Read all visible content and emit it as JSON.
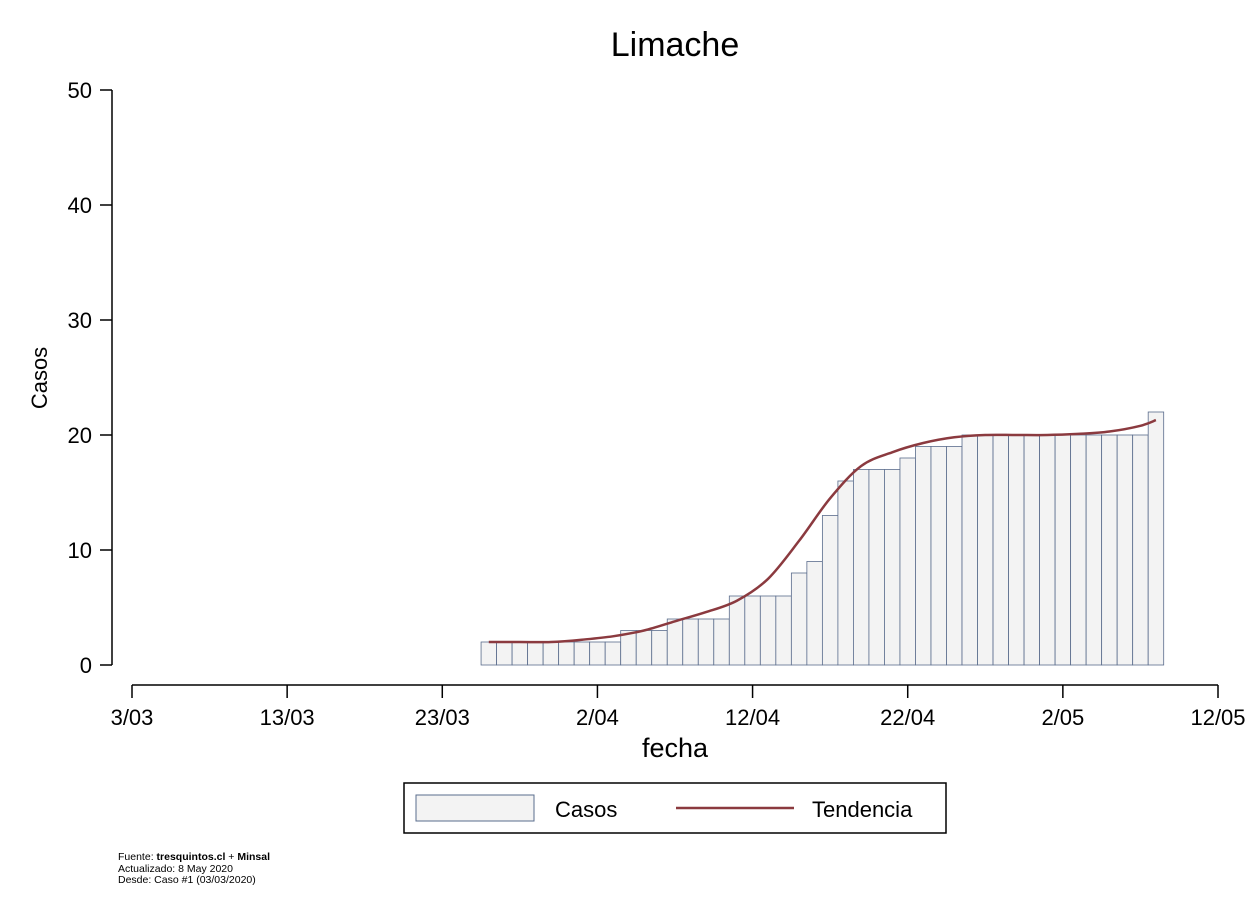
{
  "chart_data": {
    "type": "bar",
    "title": "Limache",
    "xlabel": "fecha",
    "ylabel": "Casos",
    "ylim": [
      0,
      50
    ],
    "yticks": [
      0,
      10,
      20,
      30,
      40,
      50
    ],
    "xlim": [
      "2020-03-03",
      "2020-05-12"
    ],
    "xticks": [
      {
        "date": "2020-03-03",
        "label": "3/03"
      },
      {
        "date": "2020-03-13",
        "label": "13/03"
      },
      {
        "date": "2020-03-23",
        "label": "23/03"
      },
      {
        "date": "2020-04-02",
        "label": "2/04"
      },
      {
        "date": "2020-04-12",
        "label": "12/04"
      },
      {
        "date": "2020-04-22",
        "label": "22/04"
      },
      {
        "date": "2020-05-02",
        "label": "2/05"
      },
      {
        "date": "2020-05-12",
        "label": "12/05"
      }
    ],
    "grid": false,
    "legend_position": "bottom",
    "colors": {
      "bar_fill": "#f3f3f3",
      "bar_stroke": "#5a6c8c",
      "trend": "#8b3a3f"
    },
    "series": [
      {
        "name": "Casos",
        "type": "bar",
        "x": [
          "2020-03-26",
          "2020-03-27",
          "2020-03-28",
          "2020-03-29",
          "2020-03-30",
          "2020-03-31",
          "2020-04-01",
          "2020-04-02",
          "2020-04-03",
          "2020-04-04",
          "2020-04-05",
          "2020-04-06",
          "2020-04-07",
          "2020-04-08",
          "2020-04-09",
          "2020-04-10",
          "2020-04-11",
          "2020-04-12",
          "2020-04-13",
          "2020-04-14",
          "2020-04-15",
          "2020-04-16",
          "2020-04-17",
          "2020-04-18",
          "2020-04-19",
          "2020-04-20",
          "2020-04-21",
          "2020-04-22",
          "2020-04-23",
          "2020-04-24",
          "2020-04-25",
          "2020-04-26",
          "2020-04-27",
          "2020-04-28",
          "2020-04-29",
          "2020-04-30",
          "2020-05-01",
          "2020-05-02",
          "2020-05-03",
          "2020-05-04",
          "2020-05-05",
          "2020-05-06",
          "2020-05-07",
          "2020-05-08"
        ],
        "values": [
          2,
          2,
          2,
          2,
          2,
          2,
          2,
          2,
          2,
          3,
          3,
          3,
          4,
          4,
          4,
          4,
          6,
          6,
          6,
          6,
          8,
          9,
          13,
          16,
          17,
          17,
          17,
          18,
          19,
          19,
          19,
          20,
          20,
          20,
          20,
          20,
          20,
          20,
          20,
          20,
          20,
          20,
          20,
          22
        ]
      },
      {
        "name": "Tendencia",
        "type": "line",
        "x": [
          "2020-03-26",
          "2020-03-28",
          "2020-03-30",
          "2020-04-01",
          "2020-04-03",
          "2020-04-05",
          "2020-04-07",
          "2020-04-09",
          "2020-04-11",
          "2020-04-13",
          "2020-04-15",
          "2020-04-17",
          "2020-04-19",
          "2020-04-21",
          "2020-04-23",
          "2020-04-25",
          "2020-04-27",
          "2020-04-29",
          "2020-05-01",
          "2020-05-03",
          "2020-05-05",
          "2020-05-07",
          "2020-05-08"
        ],
        "values": [
          2,
          2,
          2,
          2.2,
          2.5,
          3,
          3.8,
          4.6,
          5.6,
          7.5,
          10.8,
          14.5,
          17.3,
          18.5,
          19.3,
          19.8,
          20,
          20,
          20,
          20.1,
          20.3,
          20.8,
          21.3
        ]
      }
    ]
  },
  "footer": {
    "source_prefix": "Fuente: ",
    "source_main": "tresquintos.cl",
    "source_join": " + ",
    "source_second": "Minsal",
    "updated": "Actualizado: 8 May 2020",
    "since": "Desde: Caso #1  (03/03/2020)"
  }
}
